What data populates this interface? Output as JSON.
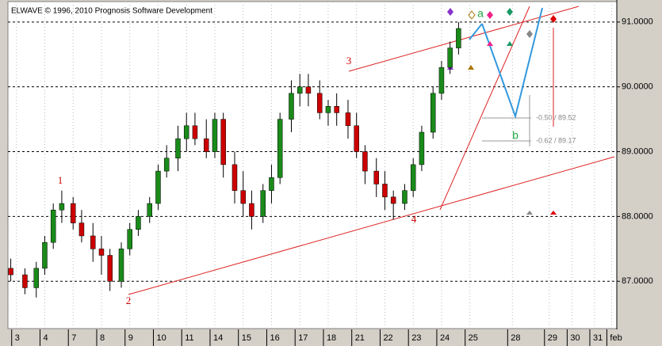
{
  "chart_data": {
    "type": "candlestick",
    "title": "ELWAVE © 1996, 2010 Prognosis Software Development",
    "x": [
      -0.2,
      0.3,
      0.7,
      1.0,
      1.3,
      1.6,
      2.0,
      2.3,
      2.7,
      3.0,
      3.3,
      3.7,
      4.0,
      4.3,
      4.7,
      5.0,
      5.3,
      5.7,
      6.0,
      6.3,
      6.7,
      7.0,
      7.3,
      7.7,
      8.0,
      8.3,
      8.7,
      9.0,
      9.3,
      9.7,
      10.0,
      10.3,
      10.7,
      11.0,
      11.3,
      11.7,
      12.0,
      12.3,
      12.7,
      13.0,
      13.3,
      13.7,
      14.0,
      14.3,
      14.7,
      15.0,
      15.3,
      15.6
    ],
    "open": [
      87.2,
      87.1,
      86.9,
      87.2,
      87.6,
      88.1,
      88.2,
      87.9,
      87.7,
      87.5,
      87.4,
      87.0,
      87.5,
      87.8,
      88.0,
      88.2,
      88.7,
      88.9,
      89.2,
      89.4,
      89.2,
      89.0,
      89.5,
      88.8,
      88.4,
      88.2,
      88.0,
      88.4,
      88.6,
      89.5,
      89.9,
      90.0,
      89.9,
      89.6,
      89.7,
      89.6,
      89.4,
      89.0,
      88.7,
      88.5,
      88.3,
      88.2,
      88.4,
      88.8,
      89.3,
      89.9,
      90.3,
      90.6
    ],
    "high": [
      87.35,
      87.2,
      87.3,
      87.7,
      88.2,
      88.4,
      88.3,
      88.1,
      87.9,
      87.7,
      87.5,
      87.6,
      87.9,
      88.1,
      88.3,
      88.8,
      89.1,
      89.4,
      89.6,
      89.6,
      89.5,
      89.6,
      89.6,
      89.0,
      88.7,
      88.4,
      88.5,
      88.8,
      89.6,
      90.1,
      90.2,
      90.2,
      90.1,
      89.8,
      89.9,
      89.8,
      89.6,
      89.1,
      88.9,
      88.7,
      88.4,
      88.5,
      88.9,
      89.4,
      90.0,
      90.4,
      90.7,
      91.0
    ],
    "low": [
      87.0,
      86.8,
      86.75,
      87.1,
      87.5,
      87.9,
      87.8,
      87.6,
      87.3,
      87.1,
      86.85,
      86.9,
      87.4,
      87.7,
      87.9,
      88.1,
      88.6,
      88.7,
      89.0,
      89.1,
      88.9,
      88.9,
      88.6,
      88.2,
      88.0,
      87.8,
      87.9,
      88.2,
      88.5,
      89.3,
      89.7,
      89.7,
      89.5,
      89.4,
      89.4,
      89.2,
      88.9,
      88.5,
      88.3,
      88.1,
      87.95,
      88.1,
      88.3,
      88.7,
      89.2,
      89.8,
      90.2,
      90.5
    ],
    "close": [
      87.1,
      86.9,
      87.2,
      87.6,
      88.1,
      88.2,
      87.9,
      87.7,
      87.5,
      87.4,
      87.0,
      87.5,
      87.8,
      88.0,
      88.2,
      88.7,
      88.9,
      89.2,
      89.4,
      89.2,
      89.0,
      89.5,
      88.8,
      88.4,
      88.2,
      88.0,
      88.4,
      88.6,
      89.5,
      89.9,
      90.0,
      89.9,
      89.6,
      89.7,
      89.6,
      89.4,
      89.0,
      88.7,
      88.5,
      88.3,
      88.2,
      88.4,
      88.8,
      89.3,
      89.9,
      90.3,
      90.6,
      90.9
    ],
    "up_color": "#1a8a1a",
    "down_color": "#cc0000",
    "ylim": [
      86.27,
      91.34
    ],
    "yticks": [
      {
        "value": 87,
        "label": "87.0000"
      },
      {
        "value": 88,
        "label": "88.0000"
      },
      {
        "value": 89,
        "label": "89.0000"
      },
      {
        "value": 90,
        "label": "90.0000"
      },
      {
        "value": 91,
        "label": "91.0000"
      }
    ],
    "xlim": [
      -0.3,
      21.1
    ],
    "xticks": [
      {
        "value": 0,
        "label": "3"
      },
      {
        "value": 1,
        "label": "4"
      },
      {
        "value": 2,
        "label": "7"
      },
      {
        "value": 3,
        "label": "8"
      },
      {
        "value": 4,
        "label": "9"
      },
      {
        "value": 5,
        "label": "10"
      },
      {
        "value": 6,
        "label": "11"
      },
      {
        "value": 7,
        "label": "14"
      },
      {
        "value": 8,
        "label": "15"
      },
      {
        "value": 9,
        "label": "16"
      },
      {
        "value": 10,
        "label": "17"
      },
      {
        "value": 11,
        "label": "18"
      },
      {
        "value": 12,
        "label": "21"
      },
      {
        "value": 13,
        "label": "22"
      },
      {
        "value": 14,
        "label": "23"
      },
      {
        "value": 15,
        "label": "24"
      },
      {
        "value": 16,
        "label": "25"
      },
      {
        "value": 17.5,
        "label": "28"
      },
      {
        "value": 18.8,
        "label": "29"
      },
      {
        "value": 19.6,
        "label": "30"
      },
      {
        "value": 20.4,
        "label": "31"
      },
      {
        "value": 21,
        "label": "feb"
      }
    ],
    "grid": true,
    "annotations": {
      "w1": "1",
      "w2": "2",
      "w3": "3",
      "w4": "4",
      "wa": "a",
      "wb": "b",
      "fib1": "-0.50 / 89.52",
      "fib2": "-0.62 / 89.17"
    }
  }
}
